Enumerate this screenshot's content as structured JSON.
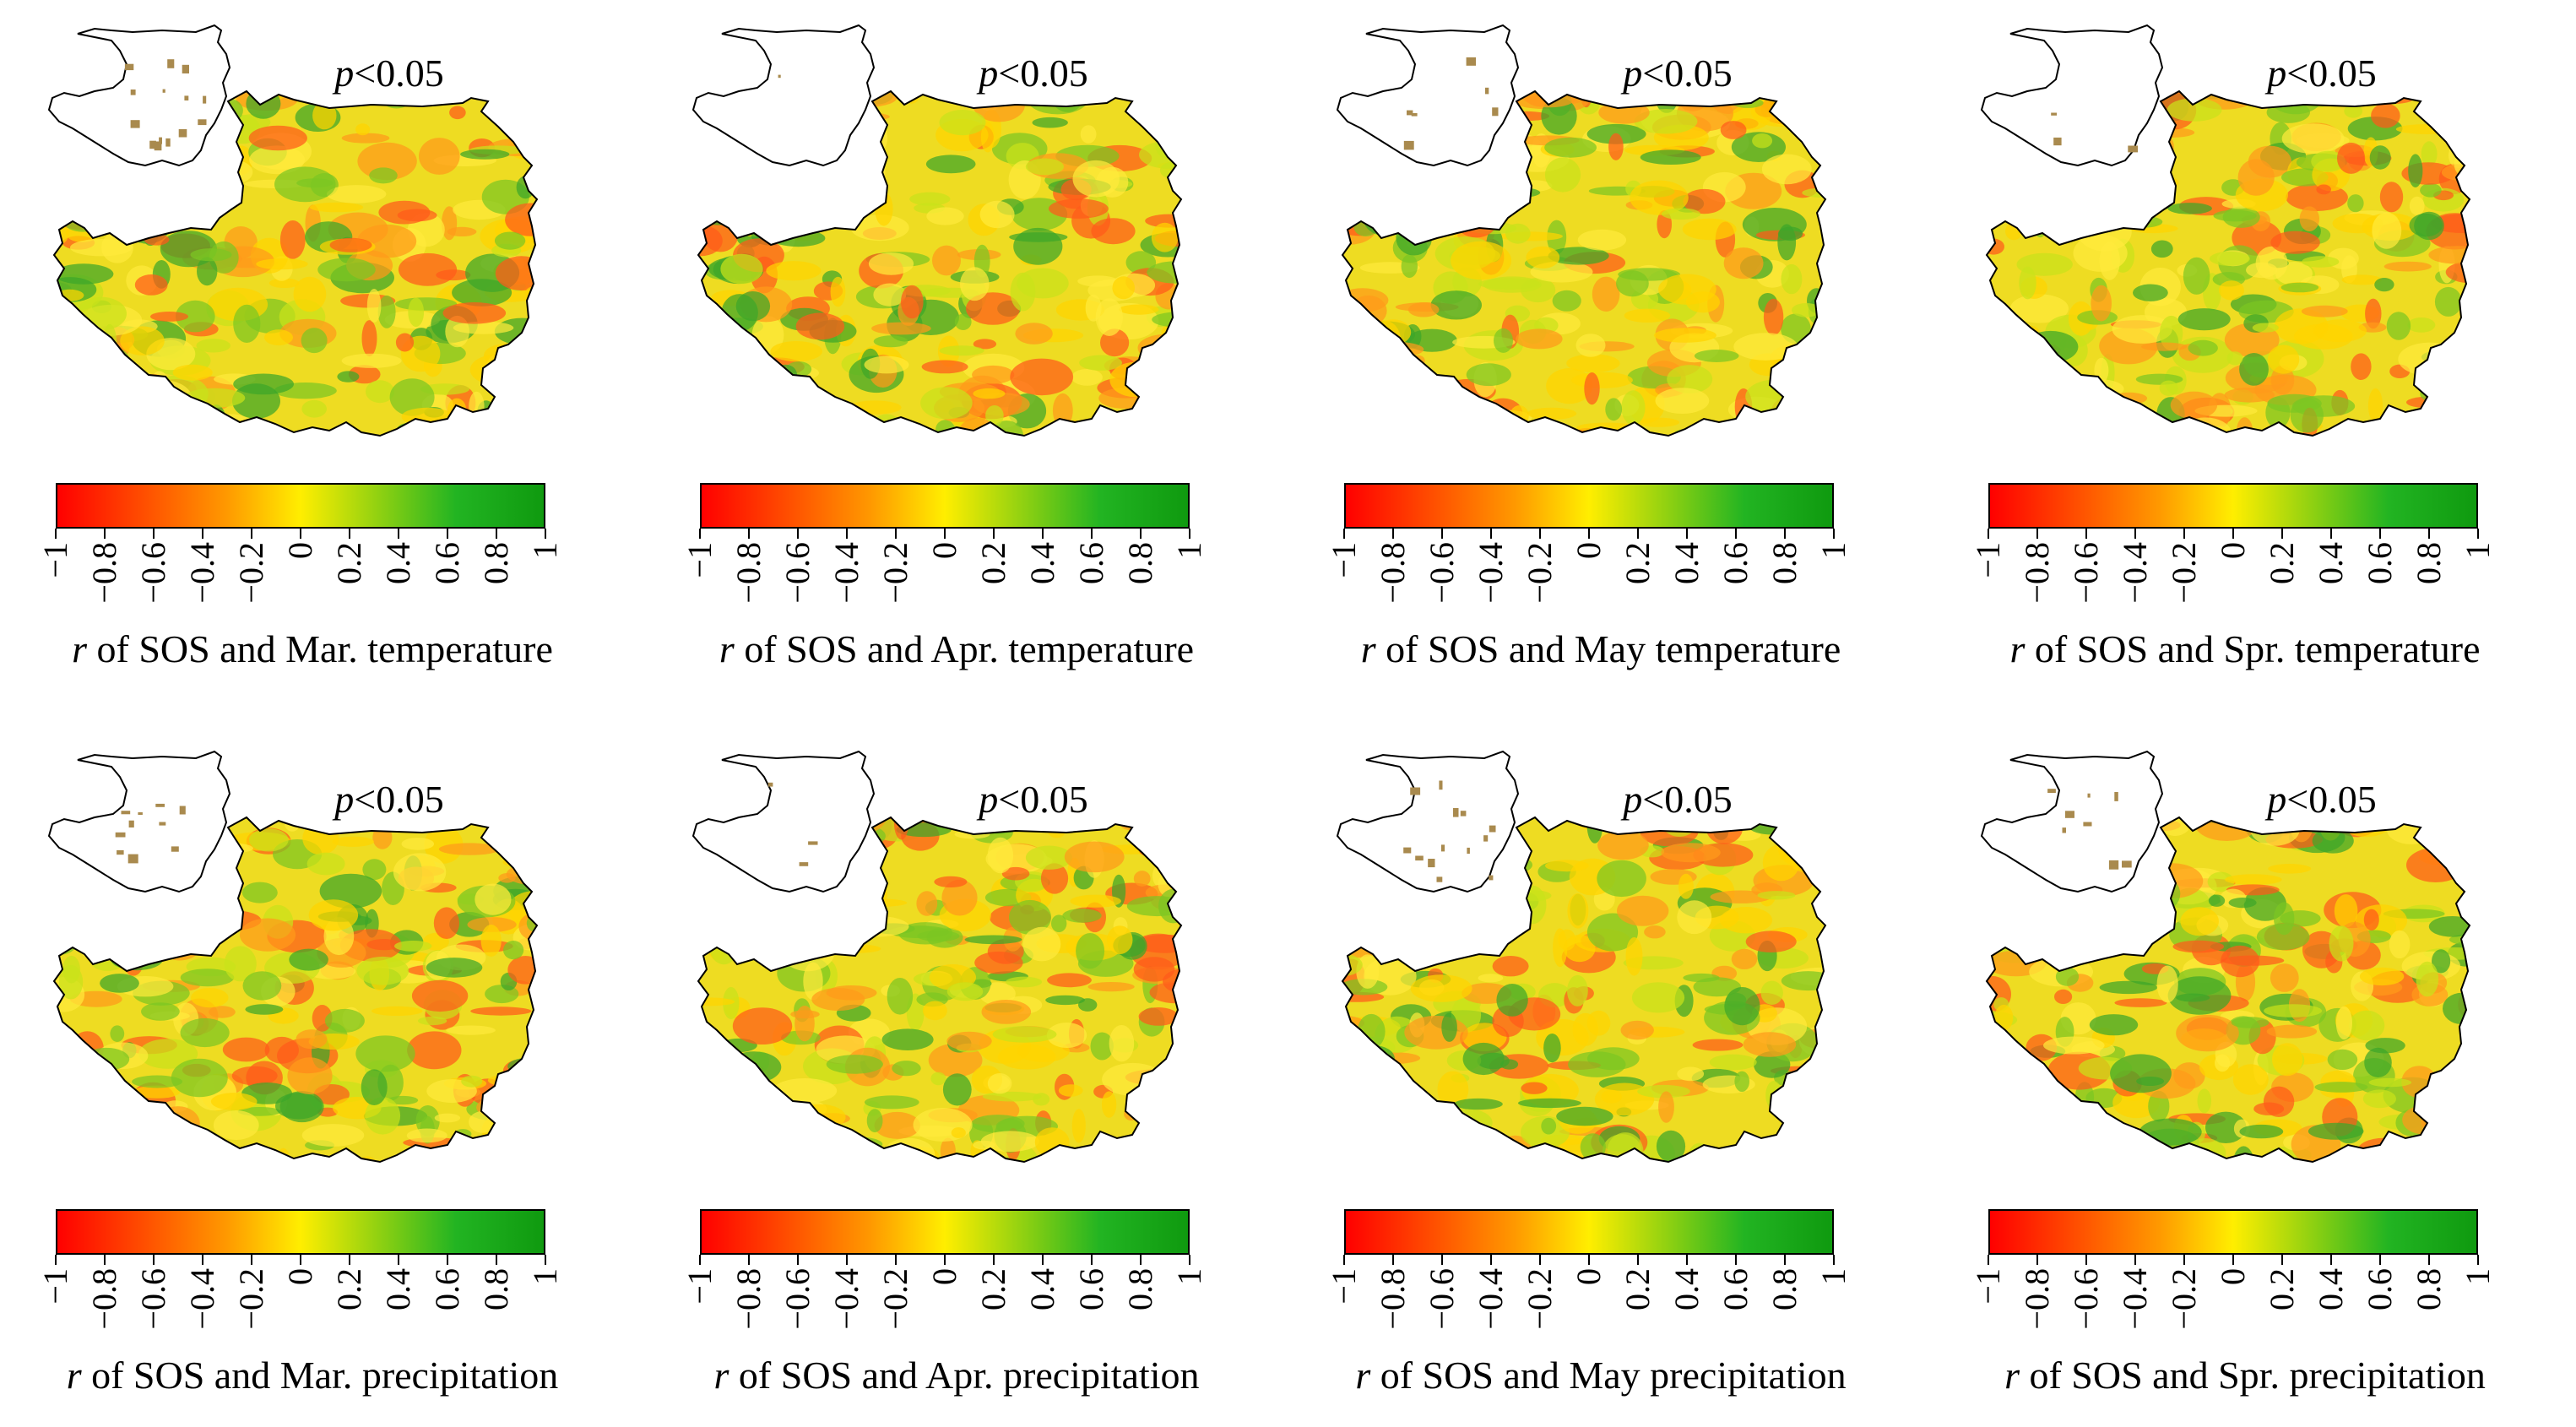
{
  "significance_label_prefix": "p",
  "significance_label_suffix": "<0.05",
  "colorbar_ticks": [
    "−1",
    "−0.8",
    "−0.6",
    "−0.4",
    "−0.2",
    "0",
    "0.2",
    "0.4",
    "0.6",
    "0.8",
    "1"
  ],
  "colorbar_colors": [
    "#ff0000",
    "#ff9a00",
    "#ffee00",
    "#22b422",
    "#0f9a0f"
  ],
  "caption_prefix": "r",
  "panels": [
    {
      "caption": " of SOS and Mar. temperature",
      "significant_cells": 14
    },
    {
      "caption": " of SOS and Apr. temperature",
      "significant_cells": 1
    },
    {
      "caption": " of SOS and May temperature",
      "significant_cells": 6
    },
    {
      "caption": " of SOS and Spr. temperature",
      "significant_cells": 3
    },
    {
      "caption": " of SOS and Mar. precipitation",
      "significant_cells": 10
    },
    {
      "caption": " of SOS and Apr. precipitation",
      "significant_cells": 3
    },
    {
      "caption": " of SOS and May precipitation",
      "significant_cells": 14
    },
    {
      "caption": " of SOS and Spr. precipitation",
      "significant_cells": 8
    }
  ]
}
